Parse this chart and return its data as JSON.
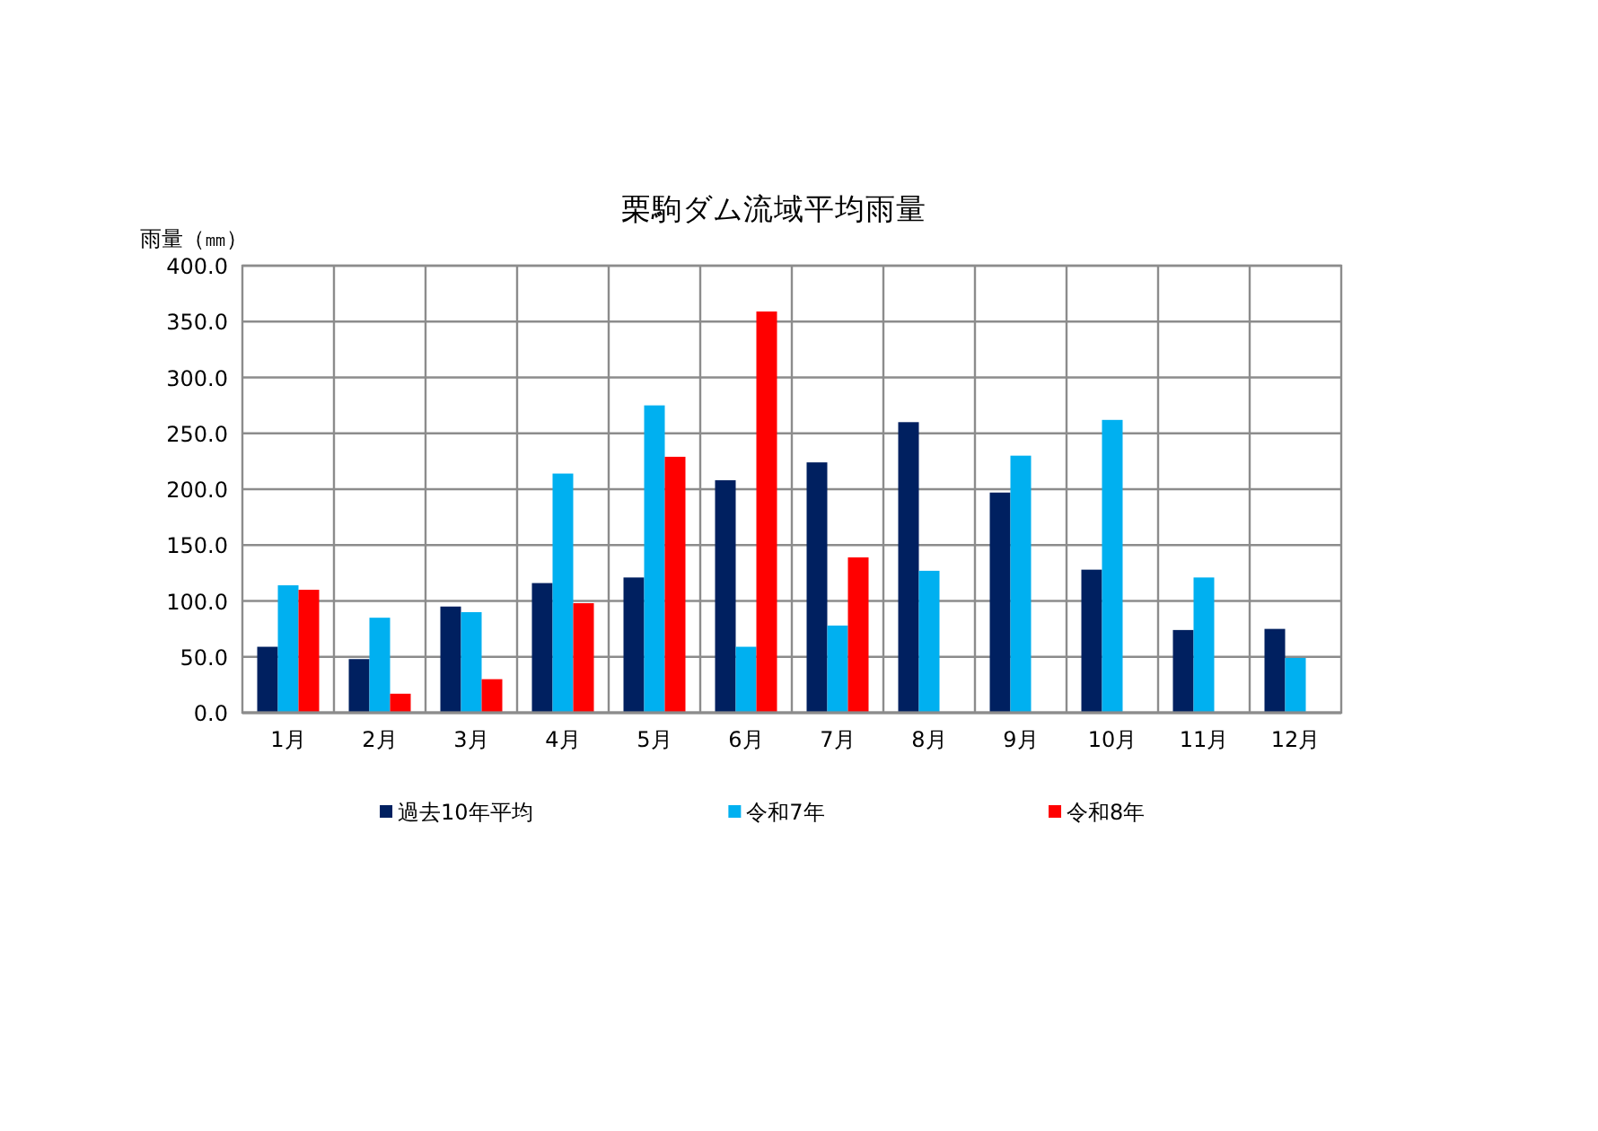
{
  "chart_data": {
    "type": "bar",
    "title": "栗駒ダム流域平均雨量",
    "ylabel": "雨量（㎜）",
    "categories": [
      "1月",
      "2月",
      "3月",
      "4月",
      "5月",
      "6月",
      "7月",
      "8月",
      "9月",
      "10月",
      "11月",
      "12月"
    ],
    "series": [
      {
        "name": "過去10年平均",
        "color": "#002060",
        "values": [
          59,
          48,
          95,
          116,
          121,
          208,
          224,
          260,
          197,
          128,
          74,
          75
        ]
      },
      {
        "name": "令和7年",
        "color": "#00b0f0",
        "values": [
          114,
          85,
          90,
          214,
          275,
          59,
          78,
          127,
          230,
          262,
          121,
          49
        ]
      },
      {
        "name": "令和8年",
        "color": "#ff0000",
        "values": [
          110,
          17,
          30,
          98,
          229,
          359,
          139,
          null,
          null,
          null,
          null,
          null
        ]
      }
    ],
    "ylim": [
      0,
      400
    ],
    "yticks": [
      {
        "value": 0,
        "label": "0.0"
      },
      {
        "value": 50,
        "label": "50.0"
      },
      {
        "value": 100,
        "label": "100.0"
      },
      {
        "value": 150,
        "label": "150.0"
      },
      {
        "value": 200,
        "label": "200.0"
      },
      {
        "value": 250,
        "label": "250.0"
      },
      {
        "value": 300,
        "label": "300.0"
      },
      {
        "value": 350,
        "label": "350.0"
      },
      {
        "value": 400,
        "label": "400.0"
      }
    ],
    "grid": true,
    "legend": "bottom"
  }
}
